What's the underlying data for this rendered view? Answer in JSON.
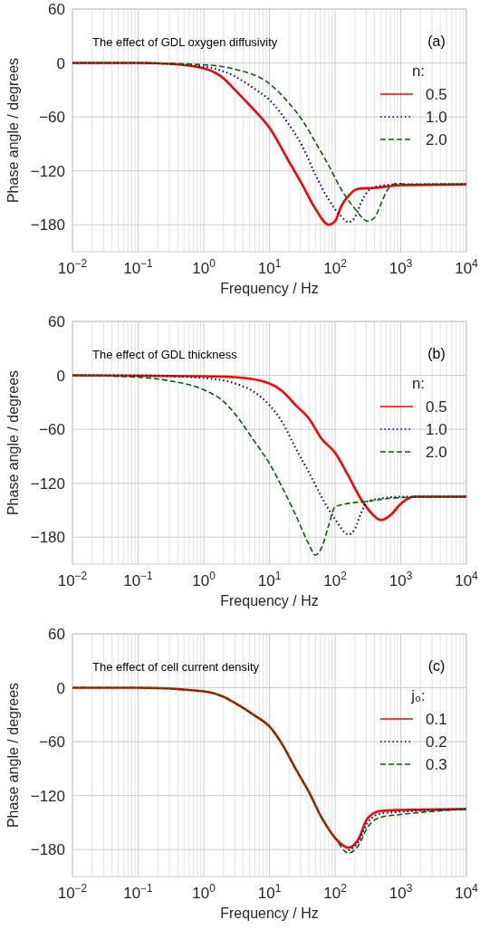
{
  "chart_data": [
    {
      "type": "line",
      "xlabel": "Frequency / Hz",
      "ylabel": "Phase angle / degrees",
      "legend_title": "n:",
      "legend": "right",
      "grid": true,
      "log": "x",
      "annotations": [
        "The effect of GDL oxygen diffusivity",
        "(a)"
      ],
      "xlim": [
        0.01,
        10000
      ],
      "xticks": [
        {
          "value": 0.01,
          "label": "10$^{−2}$"
        },
        {
          "value": 0.1,
          "label": "10$^{−1}$"
        },
        {
          "value": 1,
          "label": "10$^{0}$"
        },
        {
          "value": 10,
          "label": "10$^{1}$"
        },
        {
          "value": 100,
          "label": "10$^{2}$"
        },
        {
          "value": 1000,
          "label": "10$^{3}$"
        },
        {
          "value": 10000,
          "label": "10$^{4}$"
        }
      ],
      "ylim": [
        -210,
        60
      ],
      "yticks": [
        {
          "value": -180,
          "label": "−180"
        },
        {
          "value": -120,
          "label": "−120"
        },
        {
          "value": -60,
          "label": "−60"
        },
        {
          "value": 0,
          "label": "0"
        },
        {
          "value": 60,
          "label": "60"
        }
      ],
      "series": [
        {
          "name": "0.5",
          "color": "#ff0000",
          "line_style": "solid",
          "x": [
            0.01,
            0.1,
            0.3,
            1,
            2,
            3,
            5,
            10,
            20,
            32,
            50,
            80,
            100,
            125,
            160,
            225,
            400,
            1000,
            10000
          ],
          "values": [
            0,
            0,
            -1,
            -6,
            -17,
            -30,
            -47,
            -72,
            -110,
            -136,
            -162,
            -180,
            -176,
            -159,
            -148,
            -140,
            -139,
            -136,
            -135
          ]
        },
        {
          "name": "1.0",
          "color": "#00008b",
          "line_style": "dotted",
          "x": [
            0.01,
            0.1,
            1,
            3,
            6,
            10,
            20,
            32,
            50,
            80,
            125,
            160,
            200,
            250,
            315,
            400,
            1000,
            10000
          ],
          "values": [
            0,
            0,
            -4,
            -15,
            -29,
            -41,
            -69,
            -93,
            -124,
            -152,
            -171,
            -177,
            -172,
            -155,
            -143,
            -138,
            -135,
            -135
          ]
        },
        {
          "name": "2.0",
          "color": "#006400",
          "line_style": "dashed",
          "x": [
            0.01,
            0.1,
            1,
            3,
            10,
            20,
            32,
            50,
            80,
            125,
            200,
            315,
            400,
            500,
            630,
            890,
            1260,
            10000
          ],
          "values": [
            0,
            0,
            -2,
            -7,
            -23,
            -45,
            -64,
            -88,
            -114,
            -141,
            -162,
            -176,
            -172,
            -157,
            -141,
            -134,
            -135,
            -135
          ]
        }
      ]
    },
    {
      "type": "line",
      "xlabel": "Frequency / Hz",
      "ylabel": "Phase angle / degrees",
      "legend_title": "n:",
      "legend": "right",
      "grid": true,
      "log": "x",
      "annotations": [
        "The effect of GDL thickness",
        "(b)"
      ],
      "xlim": [
        0.01,
        10000
      ],
      "xticks": [
        {
          "value": 0.01,
          "label": "10$^{−2}$"
        },
        {
          "value": 0.1,
          "label": "10$^{−1}$"
        },
        {
          "value": 1,
          "label": "10$^{0}$"
        },
        {
          "value": 10,
          "label": "10$^{1}$"
        },
        {
          "value": 100,
          "label": "10$^{2}$"
        },
        {
          "value": 1000,
          "label": "10$^{3}$"
        },
        {
          "value": 10000,
          "label": "10$^{4}$"
        }
      ],
      "ylim": [
        -210,
        60
      ],
      "yticks": [
        {
          "value": -180,
          "label": "−180"
        },
        {
          "value": -120,
          "label": "−120"
        },
        {
          "value": -60,
          "label": "−60"
        },
        {
          "value": 0,
          "label": "0"
        },
        {
          "value": 60,
          "label": "60"
        }
      ],
      "series": [
        {
          "name": "0.5",
          "color": "#ff0000",
          "line_style": "solid",
          "x": [
            0.01,
            1,
            3,
            10,
            16,
            25,
            40,
            63,
            100,
            160,
            250,
            355,
            500,
            710,
            1000,
            1580,
            10000
          ],
          "values": [
            0,
            -1,
            -2,
            -9,
            -18,
            -33,
            -48,
            -71,
            -86,
            -112,
            -138,
            -153,
            -161,
            -155,
            -143,
            -135,
            -135
          ]
        },
        {
          "name": "1.0",
          "color": "#00008b",
          "line_style": "dotted",
          "x": [
            0.01,
            0.1,
            1,
            3,
            6,
            10,
            16,
            25,
            40,
            63,
            100,
            160,
            200,
            250,
            315,
            500,
            1000,
            10000
          ],
          "values": [
            0,
            0,
            -3,
            -9,
            -19,
            -33,
            -53,
            -81,
            -108,
            -136,
            -160,
            -177,
            -171,
            -153,
            -140,
            -137,
            -135,
            -135
          ]
        },
        {
          "name": "2.0",
          "color": "#006400",
          "line_style": "dashed",
          "x": [
            0.01,
            0.1,
            0.3,
            1,
            2,
            3,
            6,
            10,
            16,
            25,
            40,
            50,
            63,
            80,
            100,
            125,
            315,
            1000,
            10000
          ],
          "values": [
            0,
            -2,
            -6,
            -16,
            -29,
            -43,
            -74,
            -98,
            -126,
            -155,
            -188,
            -200,
            -191,
            -167,
            -146,
            -144,
            -140,
            -136,
            -135
          ]
        }
      ]
    },
    {
      "type": "line",
      "xlabel": "Frequency / Hz",
      "ylabel": "Phase angle / degrees",
      "legend_title": "j₀:",
      "legend": "right",
      "grid": true,
      "log": "x",
      "annotations": [
        "The effect of cell current density",
        "(c)"
      ],
      "xlim": [
        0.01,
        10000
      ],
      "xticks": [
        {
          "value": 0.01,
          "label": "10$^{−2}$"
        },
        {
          "value": 0.1,
          "label": "10$^{−1}$"
        },
        {
          "value": 1,
          "label": "10$^{0}$"
        },
        {
          "value": 10,
          "label": "10$^{1}$"
        },
        {
          "value": 100,
          "label": "10$^{2}$"
        },
        {
          "value": 1000,
          "label": "10$^{3}$"
        },
        {
          "value": 10000,
          "label": "10$^{4}$"
        }
      ],
      "ylim": [
        -210,
        60
      ],
      "yticks": [
        {
          "value": -180,
          "label": "−180"
        },
        {
          "value": -120,
          "label": "−120"
        },
        {
          "value": -60,
          "label": "−60"
        },
        {
          "value": 0,
          "label": "0"
        },
        {
          "value": 60,
          "label": "60"
        }
      ],
      "series": [
        {
          "name": "0.1",
          "color": "#ff0000",
          "line_style": "solid",
          "x": [
            0.01,
            0.1,
            1,
            2,
            3,
            6,
            10,
            16,
            25,
            40,
            63,
            100,
            160,
            225,
            315,
            500,
            1000,
            10000
          ],
          "values": [
            0,
            0,
            -4,
            -10,
            -17,
            -31,
            -43,
            -64,
            -90,
            -116,
            -145,
            -167,
            -178,
            -169,
            -145,
            -137,
            -136,
            -135
          ]
        },
        {
          "name": "0.2",
          "color": "#00008b",
          "line_style": "dotted",
          "x": [
            160,
            225,
            315,
            500,
            1000,
            10000
          ],
          "values": [
            -181,
            -172,
            -150,
            -140,
            -138,
            -135
          ]
        },
        {
          "name": "0.3",
          "color": "#006400",
          "line_style": "dashed",
          "x": [
            0.01,
            0.1,
            1,
            2,
            3,
            6,
            10,
            16,
            25,
            40,
            63,
            100,
            160,
            225,
            315,
            500,
            1000,
            10000
          ],
          "values": [
            0,
            0,
            -4,
            -10,
            -17,
            -31,
            -43,
            -64,
            -90,
            -116,
            -145,
            -167,
            -184,
            -176,
            -155,
            -144,
            -141,
            -135
          ]
        }
      ]
    }
  ]
}
